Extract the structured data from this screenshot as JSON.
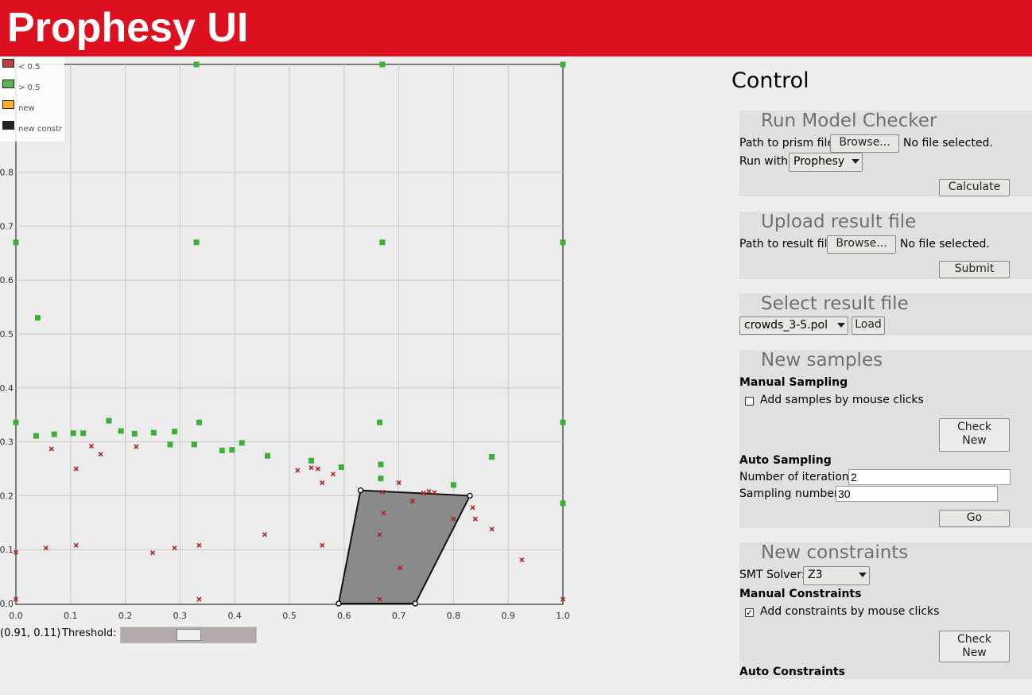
{
  "app": {
    "title": "Prophesy UI"
  },
  "plot": {
    "legend": [
      {
        "label": "< 0.5",
        "color": "#b22222"
      },
      {
        "label": "> 0.5",
        "color": "#3cb034"
      },
      {
        "label": "new",
        "color": "#ffa500"
      },
      {
        "label": "new constr",
        "color": "#000000"
      }
    ],
    "x_ticks": [
      "0.0",
      "0.1",
      "0.2",
      "0.3",
      "0.4",
      "0.5",
      "0.6",
      "0.7",
      "0.8",
      "0.9",
      "1.0"
    ],
    "y_ticks": [
      "0.0",
      "0.1",
      "0.2",
      "0.3",
      "0.4",
      "0.5",
      "0.6",
      "0.7",
      "0.8"
    ],
    "green_points": [
      [
        0.33,
        1.0
      ],
      [
        0.67,
        1.0
      ],
      [
        1.0,
        1.0
      ],
      [
        0.0,
        0.67
      ],
      [
        0.33,
        0.67
      ],
      [
        0.67,
        0.67
      ],
      [
        1.0,
        0.67
      ],
      [
        0.04,
        0.53
      ],
      [
        0.0,
        0.336
      ],
      [
        0.037,
        0.311
      ],
      [
        0.07,
        0.314
      ],
      [
        0.105,
        0.316
      ],
      [
        0.123,
        0.316
      ],
      [
        0.17,
        0.339
      ],
      [
        0.192,
        0.32
      ],
      [
        0.217,
        0.315
      ],
      [
        0.252,
        0.317
      ],
      [
        0.282,
        0.295
      ],
      [
        0.29,
        0.319
      ],
      [
        0.326,
        0.295
      ],
      [
        0.335,
        0.336
      ],
      [
        0.377,
        0.284
      ],
      [
        0.395,
        0.285
      ],
      [
        0.413,
        0.298
      ],
      [
        0.46,
        0.274
      ],
      [
        0.54,
        0.265
      ],
      [
        0.595,
        0.253
      ],
      [
        0.665,
        0.336
      ],
      [
        0.667,
        0.258
      ],
      [
        0.667,
        0.232
      ],
      [
        0.8,
        0.22
      ],
      [
        0.87,
        0.272
      ],
      [
        1.0,
        0.336
      ],
      [
        1.0,
        0.186
      ]
    ],
    "red_points": [
      [
        0.0,
        0.095
      ],
      [
        0.0,
        0.008
      ],
      [
        0.055,
        0.103
      ],
      [
        0.065,
        0.287
      ],
      [
        0.11,
        0.25
      ],
      [
        0.11,
        0.108
      ],
      [
        0.138,
        0.292
      ],
      [
        0.155,
        0.277
      ],
      [
        0.22,
        0.291
      ],
      [
        0.25,
        0.094
      ],
      [
        0.29,
        0.103
      ],
      [
        0.335,
        0.108
      ],
      [
        0.335,
        0.008
      ],
      [
        0.455,
        0.128
      ],
      [
        0.515,
        0.247
      ],
      [
        0.54,
        0.252
      ],
      [
        0.552,
        0.25
      ],
      [
        0.56,
        0.224
      ],
      [
        0.56,
        0.108
      ],
      [
        0.58,
        0.24
      ],
      [
        0.665,
        0.128
      ],
      [
        0.665,
        0.008
      ],
      [
        0.67,
        0.207
      ],
      [
        0.672,
        0.168
      ],
      [
        0.7,
        0.224
      ],
      [
        0.702,
        0.066
      ],
      [
        0.725,
        0.19
      ],
      [
        0.745,
        0.205
      ],
      [
        0.755,
        0.208
      ],
      [
        0.765,
        0.206
      ],
      [
        0.8,
        0.157
      ],
      [
        0.835,
        0.178
      ],
      [
        0.84,
        0.157
      ],
      [
        0.87,
        0.138
      ],
      [
        0.925,
        0.081
      ],
      [
        1.0,
        0.008
      ]
    ],
    "constraint_polygon": [
      [
        0.63,
        0.21
      ],
      [
        0.83,
        0.2
      ],
      [
        0.73,
        0.0
      ],
      [
        0.59,
        0.0
      ]
    ]
  },
  "status": {
    "coordinates": "(0.91, 0.11)",
    "threshold_label": "Threshold:",
    "threshold_value": 0.5
  },
  "control": {
    "title": "Control",
    "run_model_checker": {
      "title": "Run Model Checker",
      "path_label": "Path to prism file:",
      "browse_label": "Browse...",
      "file_status": "No file selected.",
      "run_with_label": "Run with:",
      "run_with_value": "Prophesy",
      "calculate_label": "Calculate"
    },
    "upload_result": {
      "title": "Upload result file",
      "path_label": "Path to result file:",
      "browse_label": "Browse...",
      "file_status": "No file selected.",
      "submit_label": "Submit"
    },
    "select_result": {
      "title": "Select result file",
      "selected_file": "crowds_3-5.pol",
      "load_label": "Load"
    },
    "new_samples": {
      "title": "New samples",
      "manual_heading": "Manual Sampling",
      "manual_checkbox_label": "Add samples by mouse clicks",
      "manual_checked": false,
      "check_new_line1": "Check",
      "check_new_line2": "New",
      "auto_heading": "Auto Sampling",
      "iterations_label": "Number of iterations:",
      "iterations_value": "2",
      "sampling_label": "Sampling number:",
      "sampling_value": "30",
      "go_label": "Go"
    },
    "new_constraints": {
      "title": "New constraints",
      "smt_label": "SMT Solver:",
      "smt_value": "Z3",
      "manual_heading": "Manual Constraints",
      "manual_checkbox_label": "Add constraints by mouse clicks",
      "manual_checked": true,
      "check_new_line1": "Check",
      "check_new_line2": "New",
      "auto_heading": "Auto Constraints"
    }
  }
}
